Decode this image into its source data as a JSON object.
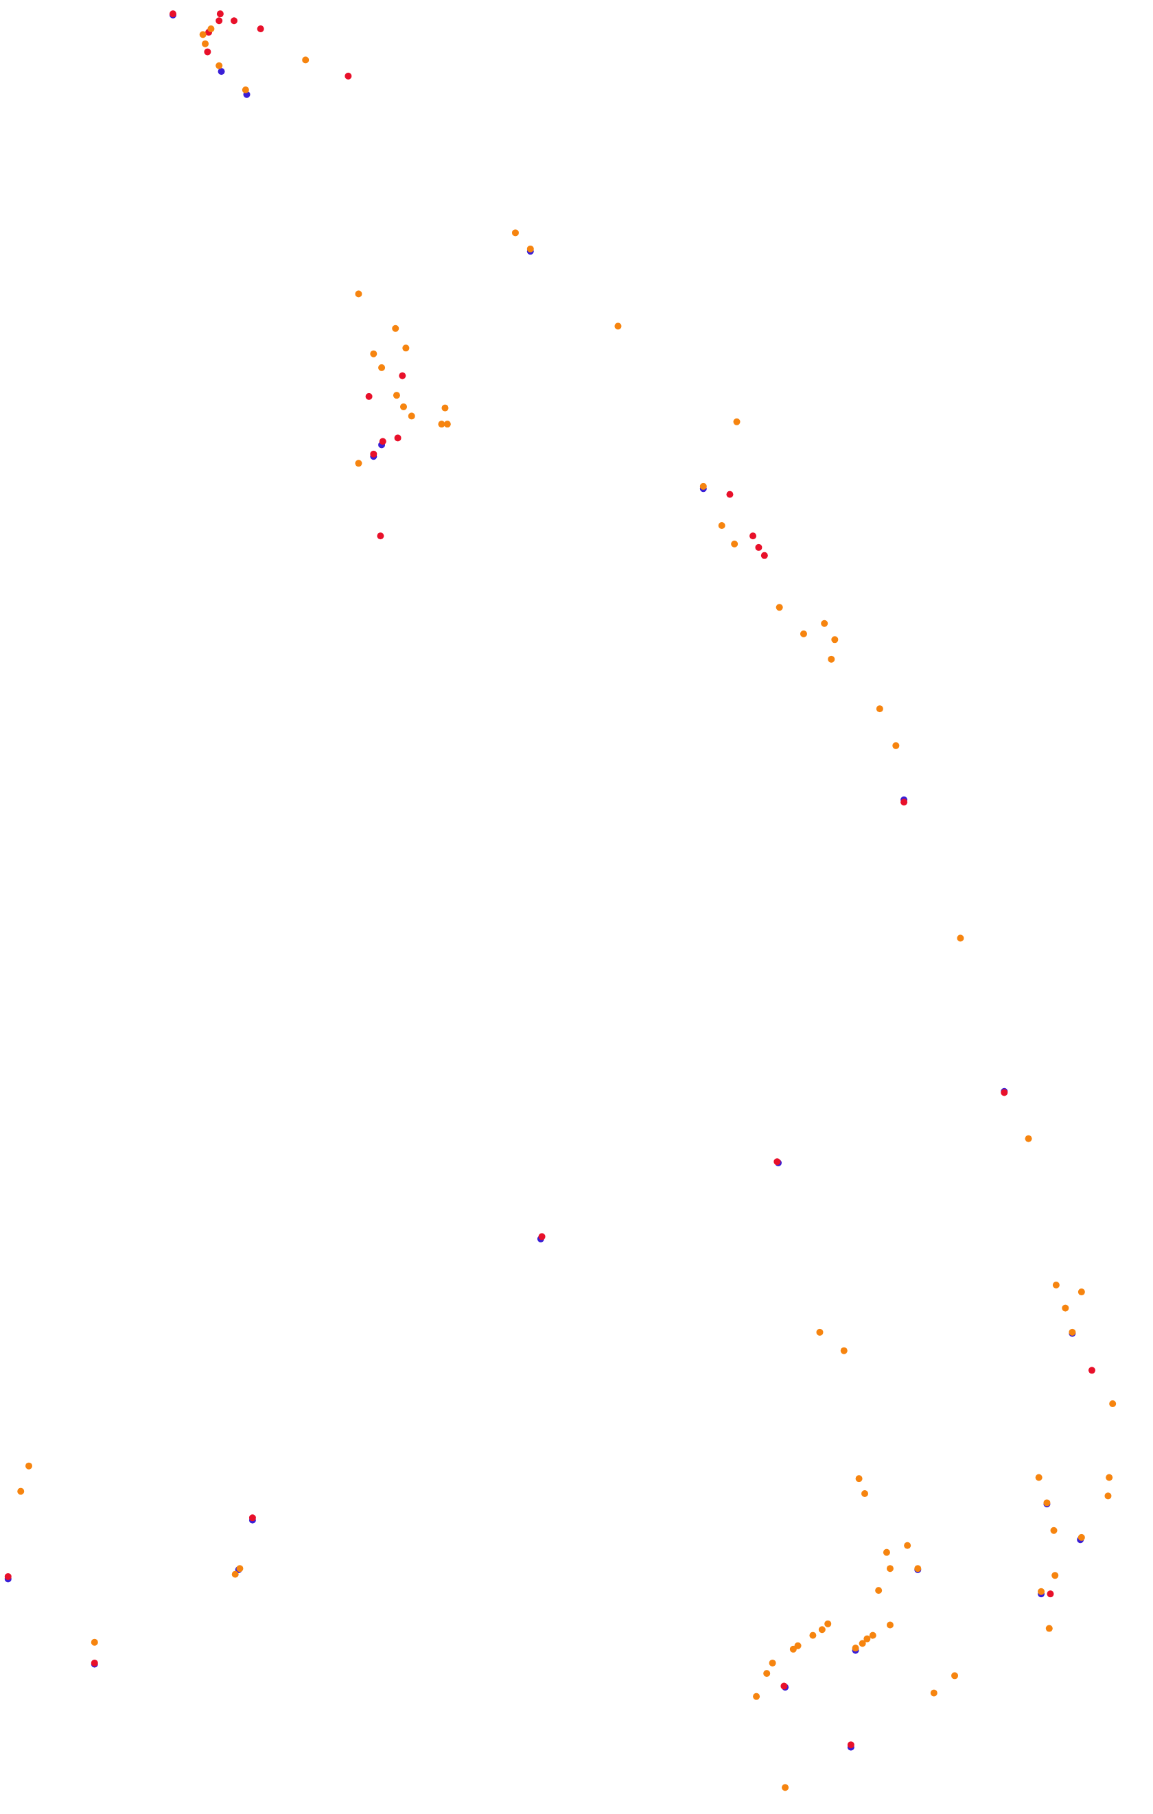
{
  "chart_data": {
    "type": "scatter",
    "xlim": [
      0,
      1000
    ],
    "ylim": [
      1574,
      0
    ],
    "series": [
      {
        "color": "#3a1fd6",
        "x": [
          150,
          192,
          214,
          324,
          331,
          784,
          675,
          871,
          469,
          219,
          7,
          207,
          82,
          681,
          738,
          742,
          796,
          908,
          903,
          937,
          930,
          610,
          460
        ],
        "values": [
          13,
          62,
          82,
          396,
          386,
          694,
          1009,
          947,
          1075,
          1319,
          1370,
          1362,
          1444,
          1464,
          1516,
          1432,
          1362,
          1305,
          1383,
          1336,
          1157,
          424,
          218
        ]
      },
      {
        "color": "#e8102a",
        "x": [
          150,
          191,
          190,
          203,
          226,
          181,
          180,
          302,
          349,
          320,
          345,
          332,
          324,
          330,
          633,
          653,
          658,
          663,
          784,
          871,
          470,
          947,
          911,
          680,
          738,
          82,
          7,
          219,
          674
        ],
        "values": [
          12,
          12,
          18,
          18,
          25,
          28,
          45,
          66,
          326,
          344,
          380,
          383,
          394,
          465,
          429,
          465,
          475,
          482,
          696,
          948,
          1073,
          1189,
          1383,
          1463,
          1514,
          1443,
          1368,
          1317,
          1008
        ]
      },
      {
        "color": "#f6840f",
        "x": [
          176,
          178,
          183,
          190,
          213,
          265,
          447,
          460,
          311,
          343,
          352,
          324,
          331,
          344,
          350,
          357,
          386,
          383,
          388,
          311,
          536,
          639,
          610,
          626,
          637,
          676,
          697,
          715,
          724,
          721,
          763,
          777,
          833,
          892,
          916,
          938,
          924,
          930,
          965,
          711,
          732,
          25,
          18,
          901,
          962,
          961,
          908,
          914,
          938,
          915,
          903,
          910,
          745,
          750,
          769,
          787,
          772,
          796,
          762,
          772,
          718,
          713,
          705,
          692,
          688,
          670,
          665,
          656,
          757,
          752,
          748,
          742,
          828,
          810,
          681,
          82,
          208,
          204
        ],
        "values": [
          30,
          38,
          25,
          57,
          78,
          52,
          202,
          216,
          255,
          285,
          302,
          307,
          319,
          343,
          353,
          361,
          354,
          368,
          368,
          402,
          283,
          366,
          422,
          456,
          472,
          527,
          550,
          541,
          555,
          572,
          615,
          647,
          814,
          988,
          1115,
          1121,
          1135,
          1156,
          1218,
          1156,
          1172,
          1272,
          1294,
          1282,
          1282,
          1298,
          1304,
          1328,
          1334,
          1367,
          1381,
          1413,
          1283,
          1296,
          1347,
          1341,
          1361,
          1361,
          1380,
          1410,
          1409,
          1414,
          1419,
          1428,
          1431,
          1443,
          1452,
          1472,
          1419,
          1422,
          1426,
          1430,
          1454,
          1469,
          1551,
          1425,
          1361,
          1366
        ]
      }
    ]
  }
}
